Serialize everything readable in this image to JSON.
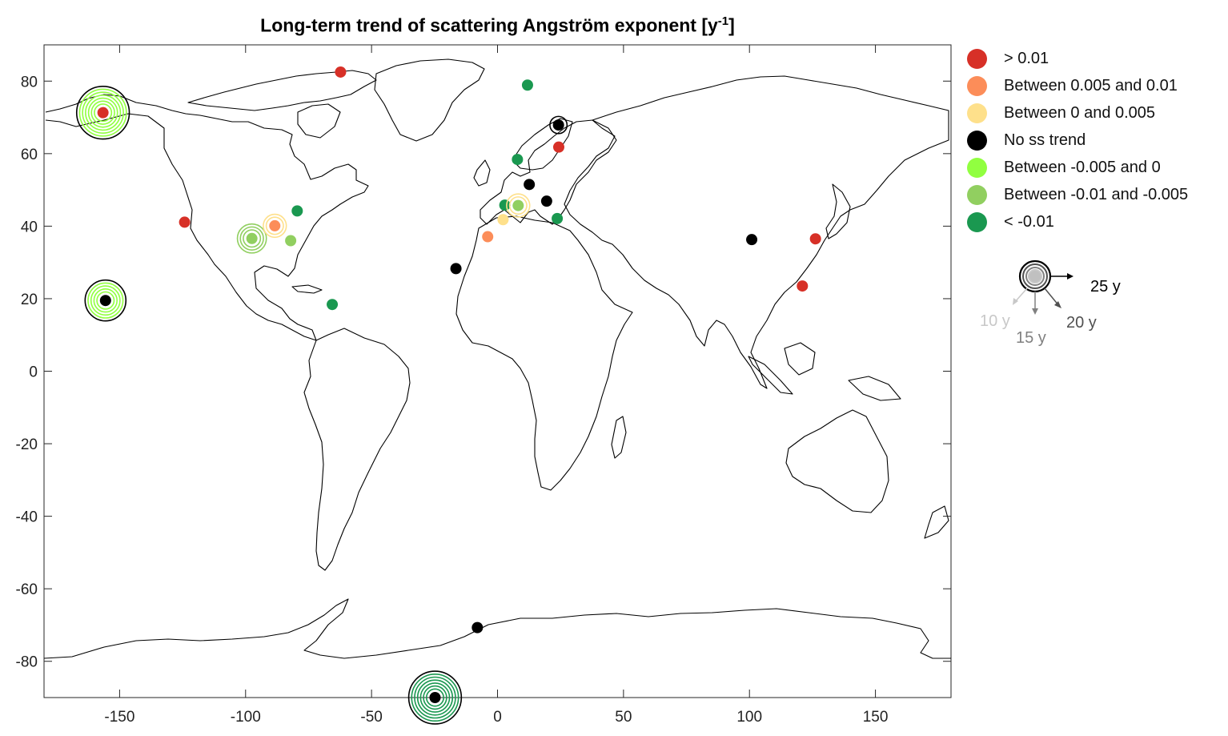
{
  "title": "Long-term trend of scattering Angström exponent [y",
  "title_sup": "-1",
  "title_close": "]",
  "legend": [
    {
      "label": "> 0.01",
      "color": "#d73027"
    },
    {
      "label": "Between 0.005 and 0.01",
      "color": "#fc8d59"
    },
    {
      "label": "Between 0 and 0.005",
      "color": "#fee08b"
    },
    {
      "label": "No ss trend",
      "color": "#000000"
    },
    {
      "label": "Between -0.005 and 0",
      "color": "#91ff40"
    },
    {
      "label": "Between -0.01 and -0.005",
      "color": "#91cf60"
    },
    {
      "label": "< -0.01",
      "color": "#1a9850"
    }
  ],
  "age_legend": [
    {
      "label": "25 y",
      "color": "#000000"
    },
    {
      "label": "10 y",
      "color": "#c8c8c8"
    },
    {
      "label": "15 y",
      "color": "#808080"
    },
    {
      "label": "20 y",
      "color": "#505050"
    }
  ],
  "chart_data": {
    "type": "scatter",
    "xlim": [
      -180,
      180
    ],
    "ylim": [
      -90,
      90
    ],
    "xticks": [
      -150,
      -100,
      -50,
      0,
      50,
      100,
      150
    ],
    "yticks": [
      80,
      60,
      40,
      20,
      0,
      -20,
      -40,
      -60,
      -80
    ],
    "grid": false,
    "legend_position": "outside-right",
    "stations": [
      {
        "lon": -156.6,
        "lat": 71.3,
        "cat": 0,
        "rings": 7,
        "ring_cat": 4
      },
      {
        "lon": -62.3,
        "lat": 82.5,
        "cat": 0,
        "rings": 0
      },
      {
        "lon": 11.9,
        "lat": 78.9,
        "cat": 6,
        "rings": 0
      },
      {
        "lon": 24.2,
        "lat": 67.9,
        "cat": 3,
        "rings": 1,
        "ring_cat": 3
      },
      {
        "lon": 24.3,
        "lat": 61.8,
        "cat": 0,
        "rings": 0
      },
      {
        "lon": 7.9,
        "lat": 58.4,
        "cat": 6,
        "rings": 0
      },
      {
        "lon": 12.6,
        "lat": 51.5,
        "cat": 3,
        "rings": 0
      },
      {
        "lon": 19.5,
        "lat": 46.9,
        "cat": 3,
        "rings": 0
      },
      {
        "lon": 2.9,
        "lat": 45.8,
        "cat": 6,
        "rings": 0
      },
      {
        "lon": 8.2,
        "lat": 45.7,
        "cat": 5,
        "rings": 2,
        "ring_cat": 2
      },
      {
        "lon": 23.7,
        "lat": 42.1,
        "cat": 6,
        "rings": 0
      },
      {
        "lon": 2.2,
        "lat": 41.8,
        "cat": 2,
        "rings": 0
      },
      {
        "lon": -3.9,
        "lat": 37.1,
        "cat": 1,
        "rings": 0
      },
      {
        "lon": -16.5,
        "lat": 28.3,
        "cat": 3,
        "rings": 0
      },
      {
        "lon": -124.2,
        "lat": 41.1,
        "cat": 0,
        "rings": 0
      },
      {
        "lon": -97.5,
        "lat": 36.6,
        "cat": 5,
        "rings": 3,
        "ring_cat": 5
      },
      {
        "lon": -88.4,
        "lat": 40.1,
        "cat": 1,
        "rings": 2,
        "ring_cat": 2
      },
      {
        "lon": -79.5,
        "lat": 44.2,
        "cat": 6,
        "rings": 0
      },
      {
        "lon": -82.1,
        "lat": 36.0,
        "cat": 5,
        "rings": 0
      },
      {
        "lon": -65.6,
        "lat": 18.4,
        "cat": 6,
        "rings": 0
      },
      {
        "lon": -155.6,
        "lat": 19.5,
        "cat": 3,
        "rings": 5,
        "ring_cat": 4
      },
      {
        "lon": 100.9,
        "lat": 36.3,
        "cat": 3,
        "rings": 0
      },
      {
        "lon": 126.2,
        "lat": 36.5,
        "cat": 0,
        "rings": 0
      },
      {
        "lon": 121.0,
        "lat": 23.5,
        "cat": 0,
        "rings": 0
      },
      {
        "lon": -8.0,
        "lat": -70.7,
        "cat": 3,
        "rings": 0
      },
      {
        "lon": -24.8,
        "lat": -90.0,
        "cat": 3,
        "rings": 7,
        "ring_cat": 6
      }
    ]
  }
}
